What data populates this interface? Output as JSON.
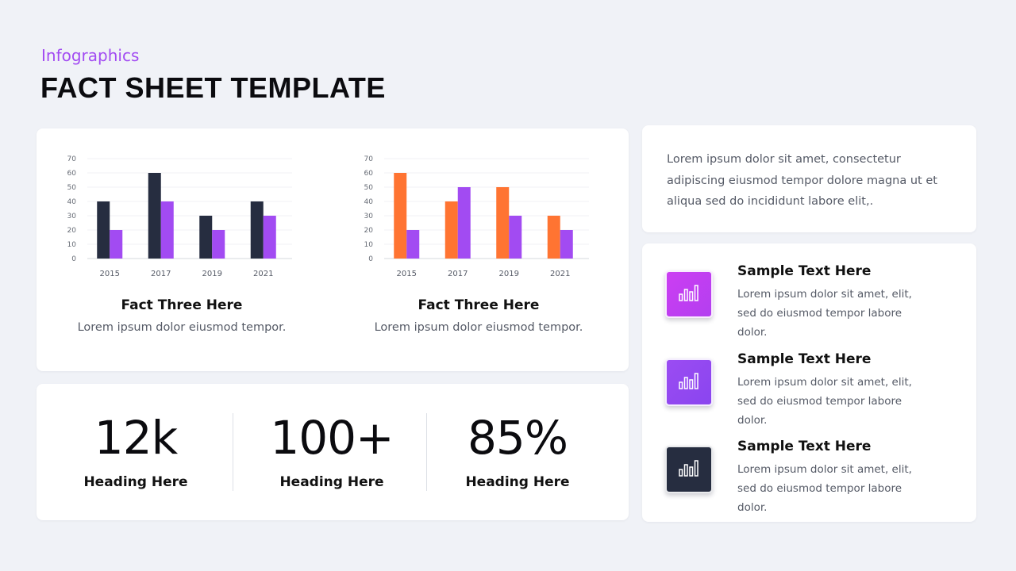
{
  "header": {
    "subtitle": "Infographics",
    "title": "FACT SHEET TEMPLATE"
  },
  "colors": {
    "accent_purple": "#a24bf2",
    "navy": "#262d40",
    "orange": "#ff7432",
    "magenta": "#cc3ef2",
    "violet": "#9b4cf2"
  },
  "chart_data": [
    {
      "type": "bar",
      "categories": [
        "2015",
        "2017",
        "2019",
        "2021"
      ],
      "series": [
        {
          "values": [
            40,
            60,
            30,
            40
          ],
          "color": "#262d40"
        },
        {
          "values": [
            20,
            40,
            20,
            30
          ],
          "color": "#a24bf2"
        }
      ],
      "yticks": [
        "0",
        "10",
        "20",
        "30",
        "40",
        "50",
        "60",
        "70"
      ],
      "ylim": [
        0,
        70
      ],
      "grid": true,
      "title": "Fact Three Here",
      "caption": "Lorem ipsum dolor eiusmod tempor."
    },
    {
      "type": "bar",
      "categories": [
        "2015",
        "2017",
        "2019",
        "2021"
      ],
      "series": [
        {
          "values": [
            60,
            40,
            50,
            30
          ],
          "color": "#ff7432"
        },
        {
          "values": [
            20,
            50,
            30,
            20
          ],
          "color": "#a24bf2"
        }
      ],
      "yticks": [
        "0",
        "10",
        "20",
        "30",
        "40",
        "50",
        "60",
        "70"
      ],
      "ylim": [
        0,
        70
      ],
      "grid": true,
      "title": "Fact Three Here",
      "caption": "Lorem ipsum dolor eiusmod tempor."
    }
  ],
  "stats": [
    {
      "value": "12k",
      "label": "Heading Here"
    },
    {
      "value": "100+",
      "label": "Heading Here"
    },
    {
      "value": "85%",
      "label": "Heading Here"
    }
  ],
  "description": "Lorem ipsum dolor sit amet, consectetur adipiscing eiusmod tempor dolore magna ut et aliqua sed do incididunt labore elit,.",
  "list": [
    {
      "heading": "Sample Text Here",
      "text": "Lorem ipsum dolor sit amet, elit, sed do eiusmod tempor labore dolor.",
      "icon": "bar-chart-icon",
      "tile_color": "#cc3ef2"
    },
    {
      "heading": "Sample Text Here",
      "text": "Lorem ipsum dolor sit amet, elit, sed do eiusmod tempor labore dolor.",
      "icon": "bar-chart-icon",
      "tile_color": "#9b4cf2"
    },
    {
      "heading": "Sample Text Here",
      "text": "Lorem ipsum dolor sit amet, elit, sed do eiusmod tempor labore dolor.",
      "icon": "bar-chart-icon",
      "tile_color": "#262d40"
    }
  ]
}
